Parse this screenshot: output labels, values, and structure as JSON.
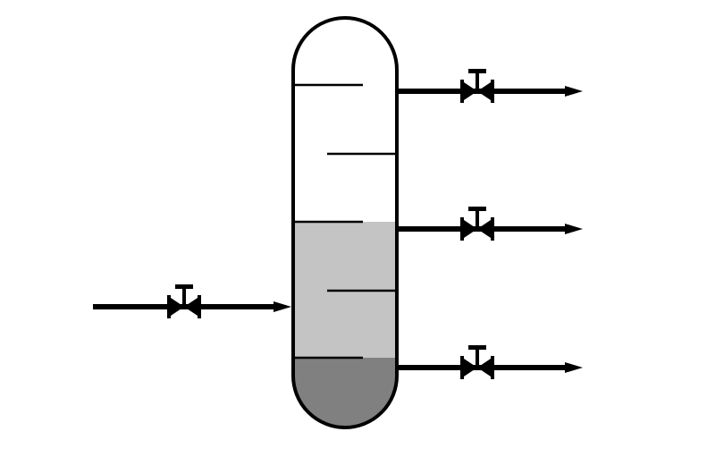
{
  "diagram": {
    "kind": "process-flow",
    "vessel": {
      "shape": "vertical-column",
      "layers": [
        {
          "name": "light-layer",
          "color": "#c4c4c4"
        },
        {
          "name": "heavy-layer",
          "color": "#808080"
        }
      ],
      "internal_baffles": 5
    },
    "streams": [
      {
        "name": "feed-inlet",
        "direction": "in",
        "has_valve": true
      },
      {
        "name": "top-outlet",
        "direction": "out",
        "has_valve": true
      },
      {
        "name": "middle-outlet",
        "direction": "out",
        "has_valve": true
      },
      {
        "name": "bottom-outlet",
        "direction": "out",
        "has_valve": true
      }
    ],
    "colors": {
      "line": "#000000",
      "background": "#ffffff"
    }
  }
}
